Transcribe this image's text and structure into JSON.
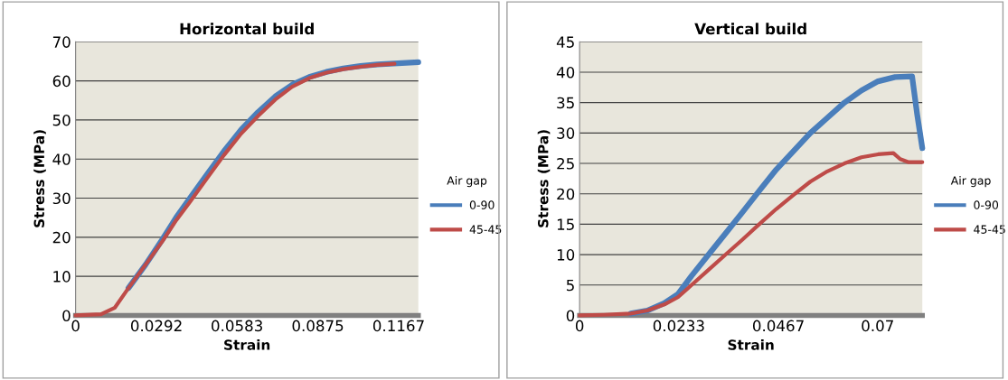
{
  "chart_data": [
    {
      "type": "line",
      "title": "Horizontal build",
      "xlabel": "Strain",
      "ylabel": "Stress (MPa)",
      "legend_title": "Air gap",
      "legend": "right",
      "grid": "y",
      "xlim": [
        0,
        0.1238
      ],
      "xticks": [
        0,
        0.0292,
        0.0583,
        0.0875,
        0.1167
      ],
      "ylim": [
        0,
        70
      ],
      "yticks": [
        0,
        10,
        20,
        30,
        40,
        50,
        60,
        70
      ],
      "series": [
        {
          "name": "0-90",
          "color": "#4a7ebb",
          "x": [
            0.0191,
            0.0253,
            0.0314,
            0.0363,
            0.0413,
            0.0474,
            0.0536,
            0.0598,
            0.0659,
            0.0721,
            0.0782,
            0.0844,
            0.0906,
            0.0967,
            0.1029,
            0.109,
            0.1238
          ],
          "values": [
            7,
            13,
            19.5,
            25,
            30,
            36,
            42,
            47.5,
            52,
            56,
            59,
            61,
            62.3,
            63.2,
            63.8,
            64.2,
            64.8
          ]
        },
        {
          "name": "45-45",
          "color": "#be4b48",
          "x": [
            0,
            0.0092,
            0.0142,
            0.0191,
            0.0253,
            0.0314,
            0.0363,
            0.0413,
            0.0474,
            0.0536,
            0.0598,
            0.0659,
            0.0721,
            0.0782,
            0.0844,
            0.0906,
            0.0967,
            0.1029,
            0.109,
            0.1152
          ],
          "values": [
            0,
            0.3,
            2,
            7,
            13,
            19,
            24.3,
            29,
            35,
            41,
            46.5,
            51,
            55.2,
            58.5,
            60.7,
            62.1,
            63,
            63.6,
            64.1,
            64.4
          ]
        }
      ]
    },
    {
      "type": "line",
      "title": "Vertical build",
      "xlabel": "Strain",
      "ylabel": "Stress (MPa)",
      "legend_title": "Air gap",
      "legend": "right",
      "grid": "y",
      "xlim": [
        0,
        0.0805
      ],
      "xticks": [
        0,
        0.0233,
        0.0467,
        0.07
      ],
      "ylim": [
        0,
        45
      ],
      "yticks": [
        0,
        5,
        10,
        15,
        20,
        25,
        30,
        35,
        40,
        45
      ],
      "series": [
        {
          "name": "0-90",
          "color": "#4a7ebb",
          "x": [
            0.012,
            0.0159,
            0.0199,
            0.0231,
            0.0263,
            0.0303,
            0.0343,
            0.0383,
            0.0422,
            0.0462,
            0.0502,
            0.0542,
            0.0582,
            0.0622,
            0.0662,
            0.0701,
            0.0741,
            0.0781,
            0.0793,
            0.0805
          ],
          "values": [
            0.3,
            0.8,
            2,
            3.5,
            6.5,
            10,
            13.5,
            17,
            20.5,
            24,
            27,
            30,
            32.5,
            35,
            37,
            38.5,
            39.2,
            39.3,
            33,
            27.5
          ]
        },
        {
          "name": "45-45",
          "color": "#be4b48",
          "x": [
            0,
            0.0056,
            0.012,
            0.0159,
            0.0199,
            0.0231,
            0.0263,
            0.0303,
            0.0343,
            0.0383,
            0.0422,
            0.0462,
            0.0502,
            0.0542,
            0.0582,
            0.0622,
            0.0662,
            0.0701,
            0.0737,
            0.0753,
            0.0773,
            0.0805
          ],
          "values": [
            0,
            0.1,
            0.3,
            0.8,
            1.8,
            3,
            5,
            7.5,
            10,
            12.5,
            15,
            17.5,
            19.8,
            22,
            23.7,
            25,
            26,
            26.5,
            26.7,
            25.7,
            25.2,
            25.2
          ]
        }
      ]
    }
  ]
}
